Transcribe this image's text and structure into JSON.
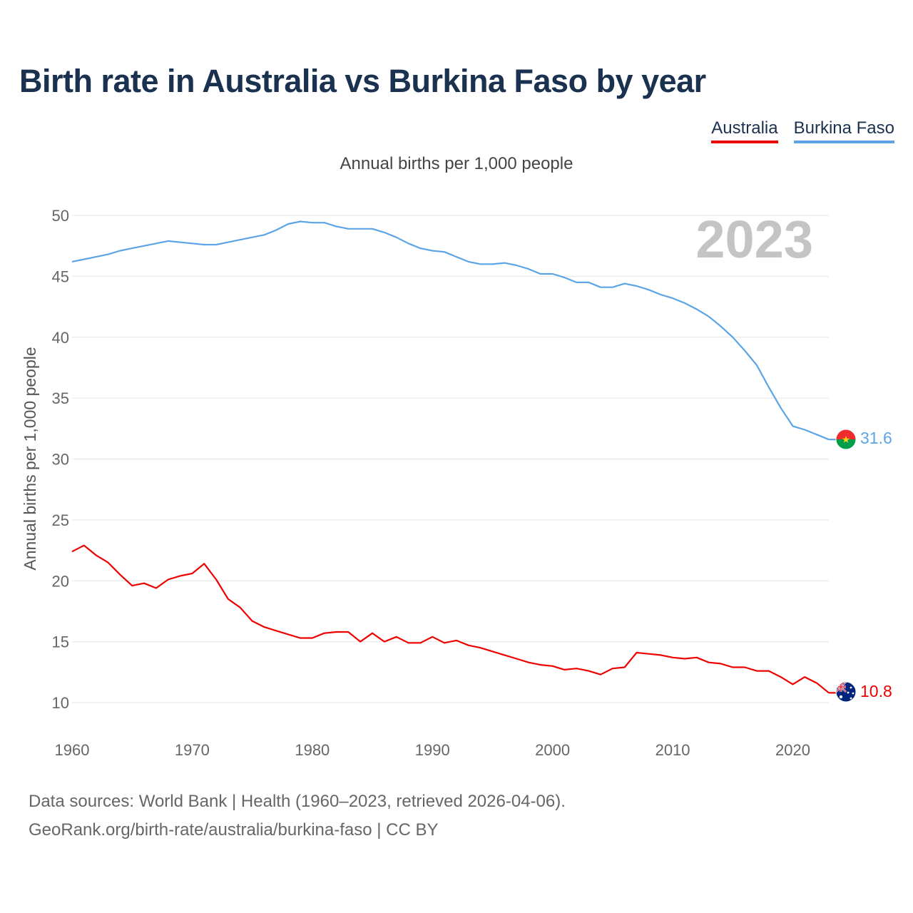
{
  "title": "Birth rate in Australia vs Burkina Faso by year",
  "subtitle": "Annual births per 1,000 people",
  "legend": [
    {
      "name": "Australia",
      "color": "#ee0000"
    },
    {
      "name": "Burkina Faso",
      "color": "#5ba4e6"
    }
  ],
  "footer": {
    "line1": "Data sources: World Bank | Health (1960–2023, retrieved 2026-04-06).",
    "line2": "GeoRank.org/birth-rate/australia/burkina-faso | CC BY"
  },
  "chart_data": {
    "type": "line",
    "title": "Birth rate in Australia vs Burkina Faso by year",
    "xlabel": "",
    "ylabel": "Annual births per 1,000 people",
    "xlim": [
      1960,
      2023
    ],
    "ylim": [
      10,
      50
    ],
    "xticks": [
      1960,
      1970,
      1980,
      1990,
      2000,
      2010,
      2020
    ],
    "yticks": [
      10,
      15,
      20,
      25,
      30,
      35,
      40,
      45,
      50
    ],
    "grid": true,
    "legend_position": "top-right",
    "annotation": "2023",
    "x": [
      1960,
      1961,
      1962,
      1963,
      1964,
      1965,
      1966,
      1967,
      1968,
      1969,
      1970,
      1971,
      1972,
      1973,
      1974,
      1975,
      1976,
      1977,
      1978,
      1979,
      1980,
      1981,
      1982,
      1983,
      1984,
      1985,
      1986,
      1987,
      1988,
      1989,
      1990,
      1991,
      1992,
      1993,
      1994,
      1995,
      1996,
      1997,
      1998,
      1999,
      2000,
      2001,
      2002,
      2003,
      2004,
      2005,
      2006,
      2007,
      2008,
      2009,
      2010,
      2011,
      2012,
      2013,
      2014,
      2015,
      2016,
      2017,
      2018,
      2019,
      2020,
      2021,
      2022,
      2023
    ],
    "series": [
      {
        "name": "Australia",
        "color": "#ee0000",
        "end_label": "10.8",
        "values": [
          22.4,
          22.9,
          22.1,
          21.5,
          20.5,
          19.6,
          19.8,
          19.4,
          20.1,
          20.4,
          20.6,
          21.4,
          20.1,
          18.5,
          17.8,
          16.7,
          16.2,
          15.9,
          15.6,
          15.3,
          15.3,
          15.7,
          15.8,
          15.8,
          15.0,
          15.7,
          15.0,
          15.4,
          14.9,
          14.9,
          15.4,
          14.9,
          15.1,
          14.7,
          14.5,
          14.2,
          13.9,
          13.6,
          13.3,
          13.1,
          13.0,
          12.7,
          12.8,
          12.6,
          12.3,
          12.8,
          12.9,
          14.1,
          14.0,
          13.9,
          13.7,
          13.6,
          13.7,
          13.3,
          13.2,
          12.9,
          12.9,
          12.6,
          12.6,
          12.1,
          11.5,
          12.1,
          11.6,
          10.8
        ]
      },
      {
        "name": "Burkina Faso",
        "color": "#5ba4e6",
        "end_label": "31.6",
        "values": [
          46.2,
          46.4,
          46.6,
          46.8,
          47.1,
          47.3,
          47.5,
          47.7,
          47.9,
          47.8,
          47.7,
          47.6,
          47.6,
          47.8,
          48.0,
          48.2,
          48.4,
          48.8,
          49.3,
          49.5,
          49.4,
          49.4,
          49.1,
          48.9,
          48.9,
          48.9,
          48.6,
          48.2,
          47.7,
          47.3,
          47.1,
          47.0,
          46.6,
          46.2,
          46.0,
          46.0,
          46.1,
          45.9,
          45.6,
          45.2,
          45.2,
          44.9,
          44.5,
          44.5,
          44.1,
          44.1,
          44.4,
          44.2,
          43.9,
          43.5,
          43.2,
          42.8,
          42.3,
          41.7,
          40.9,
          40.0,
          38.9,
          37.7,
          35.9,
          34.2,
          32.7,
          32.4,
          32.0,
          31.6
        ]
      }
    ]
  }
}
